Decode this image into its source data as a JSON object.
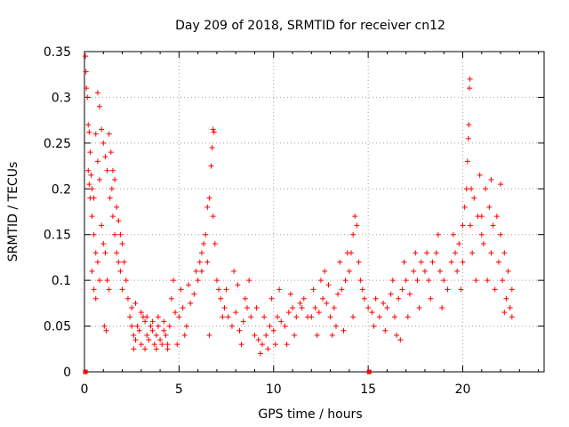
{
  "chart_data": {
    "type": "scatter",
    "title": "Day 209 of 2018, SRMTID for receiver cn12",
    "xlabel": "GPS time / hours",
    "ylabel": "SRMTID / TECUs",
    "xlim": [
      0,
      24.3
    ],
    "ylim": [
      0,
      0.35
    ],
    "xticks": [
      0,
      5,
      10,
      15,
      20
    ],
    "yticks": [
      0,
      0.05,
      0.1,
      0.15,
      0.2,
      0.25,
      0.3,
      0.35
    ],
    "xtick_labels": [
      "0",
      "5",
      "10",
      "15",
      "20"
    ],
    "ytick_labels": [
      "0",
      "0.05",
      "0.1",
      "0.15",
      "0.2",
      "0.25",
      "0.3",
      "0.35"
    ],
    "grid": true,
    "marker": "+",
    "series": [
      {
        "name": "SRMTID",
        "color": "#ff0000",
        "points": [
          [
            0.05,
            0.345
          ],
          [
            0.08,
            0.328
          ],
          [
            0.1,
            0.31
          ],
          [
            0.15,
            0.3
          ],
          [
            0.2,
            0.27
          ],
          [
            0.25,
            0.262
          ],
          [
            0.3,
            0.24
          ],
          [
            0.35,
            0.215
          ],
          [
            0.4,
            0.2
          ],
          [
            0.5,
            0.19
          ],
          [
            0.6,
            0.26
          ],
          [
            0.7,
            0.305
          ],
          [
            0.8,
            0.29
          ],
          [
            0.9,
            0.265
          ],
          [
            1.0,
            0.25
          ],
          [
            1.1,
            0.235
          ],
          [
            1.2,
            0.22
          ],
          [
            1.3,
            0.26
          ],
          [
            1.4,
            0.24
          ],
          [
            1.5,
            0.22
          ],
          [
            1.6,
            0.21
          ],
          [
            1.7,
            0.18
          ],
          [
            1.8,
            0.165
          ],
          [
            1.9,
            0.15
          ],
          [
            2.0,
            0.14
          ],
          [
            2.1,
            0.12
          ],
          [
            2.2,
            0.1
          ],
          [
            2.3,
            0.08
          ],
          [
            0.3,
            0.19
          ],
          [
            0.4,
            0.17
          ],
          [
            0.5,
            0.15
          ],
          [
            0.6,
            0.13
          ],
          [
            0.7,
            0.12
          ],
          [
            0.8,
            0.1
          ],
          [
            0.9,
            0.16
          ],
          [
            1.0,
            0.14
          ],
          [
            1.1,
            0.13
          ],
          [
            1.2,
            0.1
          ],
          [
            1.3,
            0.09
          ],
          [
            0.4,
            0.11
          ],
          [
            0.5,
            0.09
          ],
          [
            0.6,
            0.08
          ],
          [
            1.5,
            0.17
          ],
          [
            1.6,
            0.15
          ],
          [
            1.7,
            0.13
          ],
          [
            1.8,
            0.12
          ],
          [
            1.9,
            0.11
          ],
          [
            2.0,
            0.09
          ],
          [
            0.2,
            0.22
          ],
          [
            0.25,
            0.205
          ],
          [
            0.7,
            0.23
          ],
          [
            0.8,
            0.21
          ],
          [
            1.05,
            0.05
          ],
          [
            1.15,
            0.045
          ],
          [
            1.35,
            0.19
          ],
          [
            1.45,
            0.2
          ],
          [
            2.4,
            0.06
          ],
          [
            2.5,
            0.05
          ],
          [
            2.6,
            0.04
          ],
          [
            2.7,
            0.035
          ],
          [
            2.8,
            0.05
          ],
          [
            2.9,
            0.045
          ],
          [
            3.0,
            0.03
          ],
          [
            3.1,
            0.06
          ],
          [
            3.2,
            0.055
          ],
          [
            3.3,
            0.04
          ],
          [
            3.4,
            0.035
          ],
          [
            3.5,
            0.05
          ],
          [
            3.6,
            0.045
          ],
          [
            3.7,
            0.03
          ],
          [
            3.8,
            0.04
          ],
          [
            3.9,
            0.05
          ],
          [
            4.0,
            0.035
          ],
          [
            4.1,
            0.03
          ],
          [
            4.2,
            0.045
          ],
          [
            4.3,
            0.04
          ],
          [
            4.4,
            0.025
          ],
          [
            4.5,
            0.05
          ],
          [
            2.5,
            0.07
          ],
          [
            2.7,
            0.075
          ],
          [
            3.0,
            0.065
          ],
          [
            3.3,
            0.06
          ],
          [
            3.6,
            0.055
          ],
          [
            3.9,
            0.06
          ],
          [
            4.2,
            0.055
          ],
          [
            2.6,
            0.025
          ],
          [
            3.2,
            0.025
          ],
          [
            3.8,
            0.025
          ],
          [
            4.4,
            0.03
          ],
          [
            4.6,
            0.08
          ],
          [
            4.8,
            0.065
          ],
          [
            5.0,
            0.06
          ],
          [
            5.2,
            0.07
          ],
          [
            5.4,
            0.05
          ],
          [
            5.6,
            0.075
          ],
          [
            5.8,
            0.085
          ],
          [
            6.0,
            0.1
          ],
          [
            6.1,
            0.12
          ],
          [
            6.2,
            0.11
          ],
          [
            6.3,
            0.14
          ],
          [
            6.4,
            0.15
          ],
          [
            6.5,
            0.18
          ],
          [
            6.6,
            0.19
          ],
          [
            6.7,
            0.225
          ],
          [
            6.75,
            0.245
          ],
          [
            6.8,
            0.265
          ],
          [
            6.85,
            0.262
          ],
          [
            6.9,
            0.14
          ],
          [
            7.0,
            0.1
          ],
          [
            7.1,
            0.09
          ],
          [
            7.2,
            0.08
          ],
          [
            7.3,
            0.06
          ],
          [
            4.7,
            0.1
          ],
          [
            5.1,
            0.09
          ],
          [
            5.5,
            0.095
          ],
          [
            5.9,
            0.11
          ],
          [
            6.2,
            0.13
          ],
          [
            6.5,
            0.12
          ],
          [
            6.8,
            0.17
          ],
          [
            6.6,
            0.04
          ],
          [
            5.3,
            0.04
          ],
          [
            4.9,
            0.03
          ],
          [
            7.4,
            0.07
          ],
          [
            7.6,
            0.06
          ],
          [
            7.8,
            0.05
          ],
          [
            8.0,
            0.065
          ],
          [
            8.2,
            0.045
          ],
          [
            8.4,
            0.055
          ],
          [
            8.6,
            0.07
          ],
          [
            8.8,
            0.06
          ],
          [
            9.0,
            0.04
          ],
          [
            9.2,
            0.035
          ],
          [
            9.4,
            0.03
          ],
          [
            9.6,
            0.04
          ],
          [
            9.8,
            0.05
          ],
          [
            10.0,
            0.045
          ],
          [
            10.2,
            0.06
          ],
          [
            10.4,
            0.055
          ],
          [
            10.6,
            0.05
          ],
          [
            10.8,
            0.065
          ],
          [
            11.0,
            0.07
          ],
          [
            11.2,
            0.06
          ],
          [
            11.4,
            0.075
          ],
          [
            11.6,
            0.08
          ],
          [
            11.8,
            0.06
          ],
          [
            7.5,
            0.09
          ],
          [
            8.1,
            0.095
          ],
          [
            8.5,
            0.08
          ],
          [
            9.1,
            0.07
          ],
          [
            9.5,
            0.06
          ],
          [
            9.9,
            0.08
          ],
          [
            10.3,
            0.09
          ],
          [
            10.9,
            0.085
          ],
          [
            11.5,
            0.07
          ],
          [
            8.3,
            0.03
          ],
          [
            9.3,
            0.02
          ],
          [
            9.7,
            0.025
          ],
          [
            10.1,
            0.03
          ],
          [
            10.7,
            0.03
          ],
          [
            11.1,
            0.04
          ],
          [
            7.9,
            0.11
          ],
          [
            8.7,
            0.1
          ],
          [
            12.0,
            0.06
          ],
          [
            12.2,
            0.07
          ],
          [
            12.4,
            0.065
          ],
          [
            12.6,
            0.08
          ],
          [
            12.8,
            0.075
          ],
          [
            13.0,
            0.06
          ],
          [
            13.2,
            0.07
          ],
          [
            13.4,
            0.085
          ],
          [
            13.6,
            0.09
          ],
          [
            13.8,
            0.1
          ],
          [
            14.0,
            0.11
          ],
          [
            14.1,
            0.13
          ],
          [
            14.2,
            0.15
          ],
          [
            14.3,
            0.17
          ],
          [
            14.4,
            0.16
          ],
          [
            14.5,
            0.12
          ],
          [
            14.6,
            0.1
          ],
          [
            14.7,
            0.09
          ],
          [
            14.8,
            0.08
          ],
          [
            12.1,
            0.09
          ],
          [
            12.5,
            0.1
          ],
          [
            12.9,
            0.095
          ],
          [
            13.3,
            0.05
          ],
          [
            13.7,
            0.045
          ],
          [
            14.2,
            0.06
          ],
          [
            12.3,
            0.04
          ],
          [
            13.1,
            0.04
          ],
          [
            12.7,
            0.11
          ],
          [
            13.5,
            0.12
          ],
          [
            13.9,
            0.13
          ],
          [
            15.0,
            0.07
          ],
          [
            15.2,
            0.065
          ],
          [
            15.4,
            0.08
          ],
          [
            15.6,
            0.06
          ],
          [
            15.8,
            0.075
          ],
          [
            16.0,
            0.07
          ],
          [
            16.2,
            0.085
          ],
          [
            16.4,
            0.06
          ],
          [
            16.6,
            0.08
          ],
          [
            16.8,
            0.09
          ],
          [
            17.0,
            0.1
          ],
          [
            17.2,
            0.085
          ],
          [
            17.4,
            0.11
          ],
          [
            17.6,
            0.1
          ],
          [
            17.8,
            0.12
          ],
          [
            18.0,
            0.11
          ],
          [
            18.2,
            0.1
          ],
          [
            18.4,
            0.12
          ],
          [
            18.6,
            0.13
          ],
          [
            18.8,
            0.11
          ],
          [
            19.0,
            0.1
          ],
          [
            19.2,
            0.09
          ],
          [
            19.4,
            0.12
          ],
          [
            15.3,
            0.05
          ],
          [
            15.9,
            0.045
          ],
          [
            16.5,
            0.04
          ],
          [
            17.1,
            0.06
          ],
          [
            17.7,
            0.07
          ],
          [
            18.3,
            0.08
          ],
          [
            18.9,
            0.07
          ],
          [
            16.3,
            0.1
          ],
          [
            16.9,
            0.12
          ],
          [
            17.5,
            0.13
          ],
          [
            18.1,
            0.13
          ],
          [
            18.7,
            0.15
          ],
          [
            16.7,
            0.035
          ],
          [
            19.5,
            0.15
          ],
          [
            19.6,
            0.13
          ],
          [
            19.8,
            0.14
          ],
          [
            20.0,
            0.16
          ],
          [
            20.1,
            0.18
          ],
          [
            20.2,
            0.2
          ],
          [
            20.25,
            0.23
          ],
          [
            20.3,
            0.255
          ],
          [
            20.32,
            0.27
          ],
          [
            20.35,
            0.31
          ],
          [
            20.38,
            0.32
          ],
          [
            20.45,
            0.2
          ],
          [
            20.6,
            0.19
          ],
          [
            20.8,
            0.17
          ],
          [
            21.0,
            0.15
          ],
          [
            21.2,
            0.2
          ],
          [
            21.4,
            0.18
          ],
          [
            21.6,
            0.16
          ],
          [
            21.8,
            0.17
          ],
          [
            22.0,
            0.15
          ],
          [
            22.2,
            0.13
          ],
          [
            22.4,
            0.11
          ],
          [
            22.6,
            0.09
          ],
          [
            19.7,
            0.11
          ],
          [
            20.0,
            0.12
          ],
          [
            20.5,
            0.13
          ],
          [
            21.1,
            0.14
          ],
          [
            21.5,
            0.13
          ],
          [
            21.9,
            0.12
          ],
          [
            22.1,
            0.1
          ],
          [
            22.3,
            0.08
          ],
          [
            22.5,
            0.07
          ],
          [
            22.6,
            0.06
          ],
          [
            19.9,
            0.09
          ],
          [
            20.7,
            0.1
          ],
          [
            21.3,
            0.1
          ],
          [
            21.7,
            0.09
          ],
          [
            22.2,
            0.065
          ],
          [
            20.9,
            0.215
          ],
          [
            21.5,
            0.21
          ],
          [
            22.0,
            0.205
          ],
          [
            20.4,
            0.16
          ],
          [
            21.0,
            0.17
          ]
        ]
      },
      {
        "name": "baseline-markers",
        "color": "#ff0000",
        "marker": "square",
        "points": [
          [
            0.05,
            0
          ],
          [
            15.05,
            0
          ]
        ]
      }
    ]
  }
}
